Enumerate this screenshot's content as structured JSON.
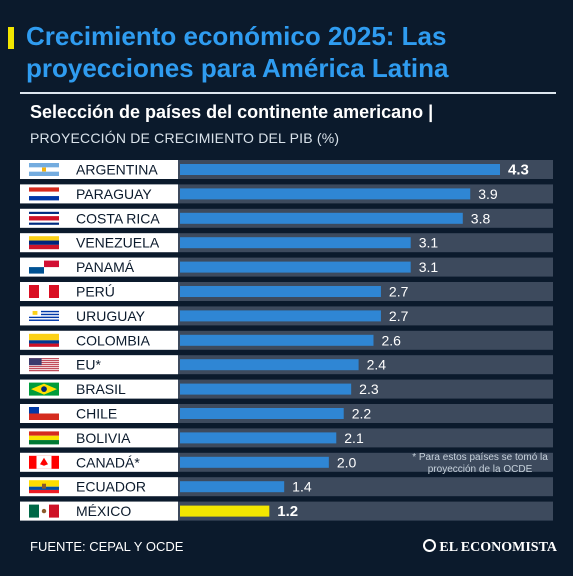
{
  "header": {
    "title": "Crecimiento económico 2025: Las proyecciones para América Latina",
    "subtitle": "Selección de países del continente americano |",
    "accent_color": "#f2e600"
  },
  "footnote": "* Para estos países se tomó la proyección de la OCDE",
  "source": "FUENTE: CEPAL Y OCDE",
  "brand": "EL ECONOMISTA",
  "colors": {
    "bar_default": "#2f86d4",
    "bar_highlight": "#f2e600",
    "row_background": "#3d4a5d",
    "label_row_background": "#ffffff"
  },
  "chart_data": {
    "type": "bar",
    "orientation": "horizontal",
    "title": "Crecimiento económico 2025: Las proyecciones para América Latina",
    "subtitle": "Selección de países del continente americano |",
    "xlabel": "",
    "ylabel": "PROYECCIÓN DE CRECIMIENTO DEL PIB (%)",
    "xlim": [
      0,
      4.3
    ],
    "grid": false,
    "legend": "none",
    "categories": [
      "ARGENTINA",
      "PARAGUAY",
      "COSTA RICA",
      "VENEZUELA",
      "PANAMÁ",
      "PERÚ",
      "URUGUAY",
      "COLOMBIA",
      "EU*",
      "BRASIL",
      "CHILE",
      "BOLIVIA",
      "CANADÁ*",
      "ECUADOR",
      "MÉXICO"
    ],
    "values": [
      4.3,
      3.9,
      3.8,
      3.1,
      3.1,
      2.7,
      2.7,
      2.6,
      2.4,
      2.3,
      2.2,
      2.1,
      2.0,
      1.4,
      1.2
    ],
    "value_labels": [
      "4.3",
      "3.9",
      "3.8",
      "3.1",
      "3.1",
      "2.7",
      "2.7",
      "2.6",
      "2.4",
      "2.3",
      "2.2",
      "2.1",
      "2.0",
      "1.4",
      "1.2"
    ],
    "highlight": [
      "ARGENTINA",
      "MÉXICO"
    ],
    "flags": [
      "flag-argentina-icon",
      "flag-paraguay-icon",
      "flag-costa-rica-icon",
      "flag-venezuela-icon",
      "flag-panama-icon",
      "flag-peru-icon",
      "flag-uruguay-icon",
      "flag-colombia-icon",
      "flag-usa-icon",
      "flag-brazil-icon",
      "flag-chile-icon",
      "flag-bolivia-icon",
      "flag-canada-icon",
      "flag-ecuador-icon",
      "flag-mexico-icon"
    ]
  }
}
